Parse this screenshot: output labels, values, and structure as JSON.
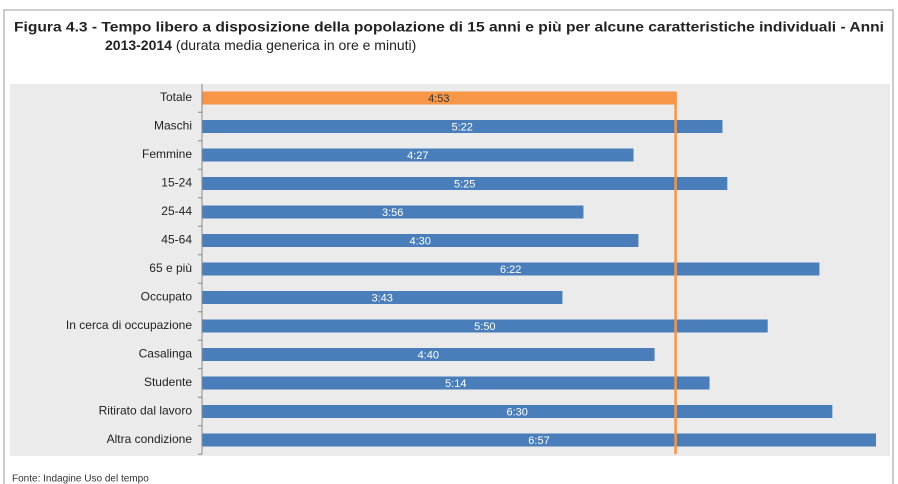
{
  "chart_data": {
    "type": "barh",
    "title": "Figura 4.3 - Tempo libero a disposizione della popolazione di 15 anni e più per alcune caratteristiche individuali - Anni",
    "title_line2": "2013-2014",
    "subtitle": "(durata media generica in ore e minuti)",
    "source": "Fonte: Indagine Uso del tempo",
    "categories": [
      "Totale",
      "Maschi",
      "Femmine",
      "15-24",
      "25-44",
      "45-64",
      "65 e più",
      "Occupato",
      "In cerca di occupazione",
      "Casalinga",
      "Studente",
      "Ritirato dal lavoro",
      "Altra condizione"
    ],
    "values": [
      293,
      322,
      267,
      325,
      236,
      270,
      382,
      223,
      350,
      280,
      314,
      390,
      417
    ],
    "value_labels": [
      "4:53",
      "5:22",
      "4:27",
      "5:25",
      "3:56",
      "4:30",
      "6:22",
      "3:43",
      "5:50",
      "4:40",
      "5:14",
      "6:30",
      "6:57"
    ],
    "color": "#4a7ebb",
    "highlight_color": "#f79646"
  }
}
